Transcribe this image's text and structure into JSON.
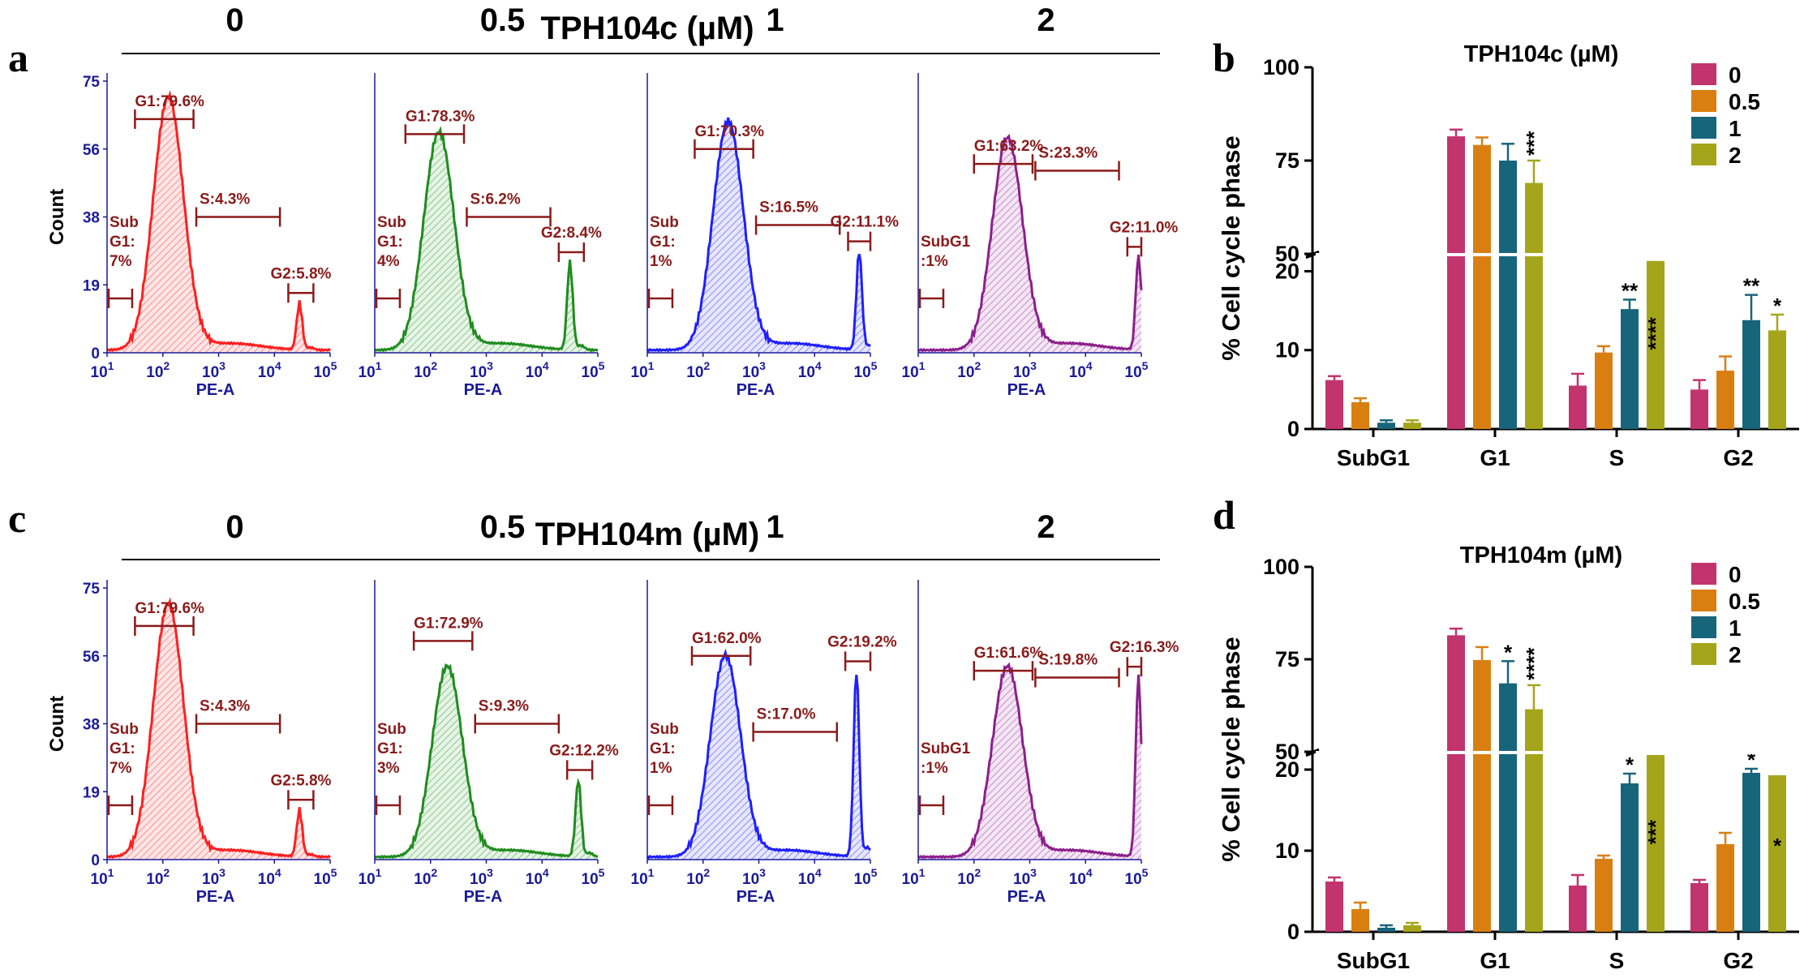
{
  "colors": {
    "conc_0": "#c2346d",
    "conc_0_5": "#d97f12",
    "conc_1": "#17657a",
    "conc_2": "#a5a51b",
    "hist_0": "#ff1f1f",
    "hist_0_5": "#1f8c1f",
    "hist_1": "#1f1fff",
    "hist_2": "#8c1f8c",
    "gate": "#8b1a1a",
    "flow_axis": "#1a1a9a"
  },
  "panel_a": {
    "letter": "a",
    "title": "TPH104c (µM)",
    "x_label": "PE-A",
    "y_label": "Count",
    "y_ticks": [
      "0",
      "19",
      "38",
      "56",
      "75"
    ],
    "x_ticks": [
      {
        "base": "10",
        "exp": "1"
      },
      {
        "base": "10",
        "exp": "2"
      },
      {
        "base": "10",
        "exp": "3"
      },
      {
        "base": "10",
        "exp": "4"
      },
      {
        "base": "10",
        "exp": "5"
      }
    ],
    "histograms": [
      {
        "conc": "0",
        "g1": "G1:79.6%",
        "s": "S:4.3%",
        "g2": "G2:5.8%",
        "sub": [
          "Sub",
          "G1:",
          "7%"
        ],
        "peak_log": 2.1,
        "peak_height": 0.93,
        "g2_height": 0.17
      },
      {
        "conc": "0.5",
        "g1": "G1:78.3%",
        "s": "S:6.2%",
        "g2": "G2:8.4%",
        "sub": [
          "Sub",
          "G1:",
          "4%"
        ],
        "peak_log": 2.15,
        "peak_height": 0.8,
        "g2_height": 0.32
      },
      {
        "conc": "1",
        "g1": "G1:70.3%",
        "s": "S:16.5%",
        "g2": "G2:11.1%",
        "sub": [
          "Sub",
          "G1:",
          "1%"
        ],
        "peak_log": 2.45,
        "peak_height": 0.84,
        "g2_height": 0.36
      },
      {
        "conc": "2",
        "g1": "G1:63.2%",
        "s": "S:23.3%",
        "g2": "G2:11.0%",
        "sub": [
          "SubG1",
          ":1%"
        ],
        "peak_log": 2.6,
        "peak_height": 0.78,
        "g2_height": 0.34
      }
    ]
  },
  "panel_c": {
    "letter": "c",
    "title": "TPH104m (µM)",
    "x_label": "PE-A",
    "y_label": "Count",
    "y_ticks": [
      "0",
      "19",
      "38",
      "56",
      "75"
    ],
    "x_ticks": [
      {
        "base": "10",
        "exp": "1"
      },
      {
        "base": "10",
        "exp": "2"
      },
      {
        "base": "10",
        "exp": "3"
      },
      {
        "base": "10",
        "exp": "4"
      },
      {
        "base": "10",
        "exp": "5"
      }
    ],
    "histograms": [
      {
        "conc": "0",
        "g1": "G1:79.6%",
        "s": "S:4.3%",
        "g2": "G2:5.8%",
        "sub": [
          "Sub",
          "G1:",
          "7%"
        ],
        "peak_log": 2.1,
        "peak_height": 0.93,
        "g2_height": 0.17
      },
      {
        "conc": "0.5",
        "g1": "G1:72.9%",
        "s": "S:9.3%",
        "g2": "G2:12.2%",
        "sub": [
          "Sub",
          "G1:",
          "3%"
        ],
        "peak_log": 2.3,
        "peak_height": 0.7,
        "g2_height": 0.28
      },
      {
        "conc": "1",
        "g1": "G1:62.0%",
        "s": "S:17.0%",
        "g2": "G2:19.2%",
        "sub": [
          "Sub",
          "G1:",
          "1%"
        ],
        "peak_log": 2.4,
        "peak_height": 0.74,
        "g2_height": 0.68
      },
      {
        "conc": "2",
        "g1": "G1:61.6%",
        "s": "S:19.8%",
        "g2": "G2:16.3%",
        "sub": [
          "SubG1",
          ":1%"
        ],
        "peak_log": 2.6,
        "peak_height": 0.7,
        "g2_height": 0.66
      }
    ]
  },
  "chart_data": [
    {
      "type": "bar",
      "panel": "b",
      "title": "TPH104c (µM)",
      "xlabel": "",
      "ylabel": "% Cell cycle phase",
      "categories": [
        "SubG1",
        "G1",
        "S",
        "G2"
      ],
      "axis_break": {
        "lower_range": [
          0,
          22
        ],
        "upper_range": [
          50,
          100
        ]
      },
      "lower_ticks": [
        "0",
        "10",
        "20"
      ],
      "upper_ticks": [
        "50",
        "75",
        "100"
      ],
      "legend_position": "top-right",
      "series": [
        {
          "name": "0",
          "values": [
            6.2,
            81.5,
            5.5,
            5.0
          ],
          "errors": [
            0.5,
            1.8,
            1.5,
            1.2
          ],
          "stars": [
            "",
            "",
            "",
            ""
          ]
        },
        {
          "name": "0.5",
          "values": [
            3.4,
            79.2,
            9.7,
            7.4
          ],
          "errors": [
            0.5,
            2.0,
            0.8,
            1.8
          ],
          "stars": [
            "",
            "",
            "",
            ""
          ]
        },
        {
          "name": "1",
          "values": [
            0.8,
            75.0,
            15.2,
            13.8
          ],
          "errors": [
            0.3,
            4.5,
            1.2,
            3.2
          ],
          "stars": [
            "",
            "",
            "**",
            "**"
          ]
        },
        {
          "name": "2",
          "values": [
            0.8,
            69.0,
            21.3,
            12.5
          ],
          "errors": [
            0.3,
            6.0,
            1.6,
            2.0
          ],
          "stars": [
            "",
            "***",
            "****",
            "*"
          ]
        }
      ]
    },
    {
      "type": "bar",
      "panel": "d",
      "title": "TPH104m (µM)",
      "xlabel": "",
      "ylabel": "% Cell cycle phase",
      "categories": [
        "SubG1",
        "G1",
        "S",
        "G2"
      ],
      "axis_break": {
        "lower_range": [
          0,
          22
        ],
        "upper_range": [
          50,
          100
        ]
      },
      "lower_ticks": [
        "0",
        "10",
        "20"
      ],
      "upper_ticks": [
        "50",
        "75",
        "100"
      ],
      "legend_position": "top-right",
      "series": [
        {
          "name": "0",
          "values": [
            6.2,
            81.5,
            5.7,
            6.0
          ],
          "errors": [
            0.5,
            1.8,
            1.3,
            0.4
          ],
          "stars": [
            "",
            "",
            "",
            ""
          ]
        },
        {
          "name": "0.5",
          "values": [
            2.8,
            74.8,
            9.0,
            10.8
          ],
          "errors": [
            0.8,
            3.5,
            0.4,
            1.4
          ],
          "stars": [
            "",
            "",
            "",
            ""
          ]
        },
        {
          "name": "1",
          "values": [
            0.5,
            68.5,
            18.3,
            19.6
          ],
          "errors": [
            0.3,
            6.0,
            1.2,
            0.5
          ],
          "stars": [
            "",
            "*",
            "*",
            "*"
          ]
        },
        {
          "name": "2",
          "values": [
            0.8,
            61.5,
            21.8,
            19.3
          ],
          "errors": [
            0.3,
            6.5,
            1.8,
            2.8
          ],
          "stars": [
            "",
            "****",
            "***",
            "*"
          ]
        }
      ]
    }
  ]
}
